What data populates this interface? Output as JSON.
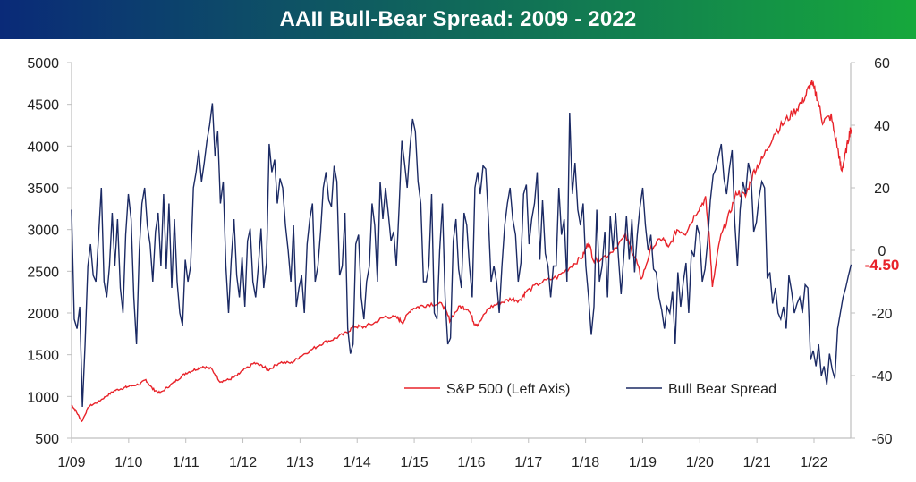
{
  "header": {
    "title": "AAII Bull-Bear Spread: 2009 - 2022",
    "gradient_left": "#0a2a78",
    "gradient_right": "#16a83c"
  },
  "chart_data": {
    "type": "line",
    "title": "AAII Bull-Bear Spread: 2009 - 2022",
    "xlabel": "",
    "ylabel": "",
    "x_ticks": [
      "1/09",
      "1/10",
      "1/11",
      "1/12",
      "1/13",
      "1/14",
      "1/15",
      "1/16",
      "1/17",
      "1/18",
      "1/19",
      "1/20",
      "1/21",
      "1/22"
    ],
    "x_range": [
      2009.0,
      2022.65
    ],
    "left_axis": {
      "ticks": [
        "5000",
        "4500",
        "4000",
        "3500",
        "3000",
        "2500",
        "2000",
        "1500",
        "1000",
        "500"
      ],
      "ylim": [
        500,
        5000
      ]
    },
    "right_axis": {
      "ticks": [
        "60",
        "40",
        "20",
        "0",
        "-20",
        "-40",
        "-60"
      ],
      "ylim": [
        -60,
        60
      ]
    },
    "grid": false,
    "legend_position": "bottom-right",
    "series": [
      {
        "name": "S&P 500 (Left Axis)",
        "axis": "left",
        "color": "#e8232a",
        "points": [
          [
            2009.0,
            900
          ],
          [
            2009.08,
            820
          ],
          [
            2009.18,
            700
          ],
          [
            2009.3,
            880
          ],
          [
            2009.45,
            930
          ],
          [
            2009.6,
            1000
          ],
          [
            2009.75,
            1070
          ],
          [
            2009.9,
            1100
          ],
          [
            2010.0,
            1120
          ],
          [
            2010.2,
            1150
          ],
          [
            2010.3,
            1200
          ],
          [
            2010.42,
            1090
          ],
          [
            2010.55,
            1040
          ],
          [
            2010.7,
            1120
          ],
          [
            2010.85,
            1200
          ],
          [
            2011.0,
            1280
          ],
          [
            2011.15,
            1320
          ],
          [
            2011.3,
            1360
          ],
          [
            2011.45,
            1330
          ],
          [
            2011.6,
            1180
          ],
          [
            2011.75,
            1200
          ],
          [
            2011.9,
            1250
          ],
          [
            2012.0,
            1310
          ],
          [
            2012.2,
            1400
          ],
          [
            2012.35,
            1360
          ],
          [
            2012.45,
            1320
          ],
          [
            2012.65,
            1410
          ],
          [
            2012.85,
            1400
          ],
          [
            2013.0,
            1480
          ],
          [
            2013.2,
            1560
          ],
          [
            2013.4,
            1640
          ],
          [
            2013.6,
            1690
          ],
          [
            2013.8,
            1760
          ],
          [
            2013.95,
            1840
          ],
          [
            2014.1,
            1830
          ],
          [
            2014.3,
            1880
          ],
          [
            2014.5,
            1960
          ],
          [
            2014.7,
            1940
          ],
          [
            2014.8,
            1890
          ],
          [
            2014.95,
            2050
          ],
          [
            2015.1,
            2080
          ],
          [
            2015.3,
            2110
          ],
          [
            2015.5,
            2100
          ],
          [
            2015.62,
            1920
          ],
          [
            2015.8,
            2080
          ],
          [
            2015.95,
            2050
          ],
          [
            2016.05,
            1880
          ],
          [
            2016.12,
            1860
          ],
          [
            2016.3,
            2060
          ],
          [
            2016.5,
            2120
          ],
          [
            2016.7,
            2170
          ],
          [
            2016.85,
            2150
          ],
          [
            2016.95,
            2250
          ],
          [
            2017.2,
            2360
          ],
          [
            2017.5,
            2430
          ],
          [
            2017.75,
            2560
          ],
          [
            2017.95,
            2680
          ],
          [
            2018.05,
            2850
          ],
          [
            2018.15,
            2620
          ],
          [
            2018.4,
            2700
          ],
          [
            2018.7,
            2920
          ],
          [
            2018.88,
            2650
          ],
          [
            2018.98,
            2400
          ],
          [
            2019.15,
            2780
          ],
          [
            2019.35,
            2900
          ],
          [
            2019.45,
            2770
          ],
          [
            2019.6,
            3000
          ],
          [
            2019.75,
            2960
          ],
          [
            2019.95,
            3220
          ],
          [
            2020.1,
            3370
          ],
          [
            2020.18,
            2800
          ],
          [
            2020.22,
            2300
          ],
          [
            2020.35,
            2880
          ],
          [
            2020.5,
            3150
          ],
          [
            2020.65,
            3450
          ],
          [
            2020.8,
            3400
          ],
          [
            2020.95,
            3700
          ],
          [
            2021.1,
            3850
          ],
          [
            2021.3,
            4150
          ],
          [
            2021.5,
            4300
          ],
          [
            2021.7,
            4450
          ],
          [
            2021.85,
            4600
          ],
          [
            2021.95,
            4760
          ],
          [
            2022.05,
            4600
          ],
          [
            2022.15,
            4300
          ],
          [
            2022.3,
            4350
          ],
          [
            2022.42,
            3950
          ],
          [
            2022.48,
            3700
          ],
          [
            2022.55,
            3900
          ],
          [
            2022.62,
            4150
          ],
          [
            2022.65,
            4200
          ]
        ]
      },
      {
        "name": "Bull Bear Spread",
        "axis": "right",
        "color": "#1b2a64",
        "start": 2009.0,
        "end": 2022.65,
        "values": [
          13,
          -22,
          -25,
          -18,
          -50,
          -30,
          -5,
          2,
          -8,
          -10,
          5,
          20,
          -10,
          -15,
          -5,
          12,
          -5,
          10,
          -12,
          -20,
          5,
          18,
          10,
          -15,
          -30,
          0,
          15,
          20,
          8,
          2,
          -10,
          6,
          12,
          -5,
          18,
          -6,
          15,
          -12,
          10,
          -10,
          -20,
          -24,
          -3,
          -10,
          -5,
          20,
          25,
          32,
          22,
          28,
          35,
          40,
          47,
          30,
          38,
          15,
          22,
          -5,
          -20,
          -3,
          10,
          -8,
          -15,
          -2,
          -18,
          3,
          7,
          -10,
          -15,
          -5,
          7,
          -12,
          -4,
          34,
          25,
          29,
          15,
          23,
          20,
          8,
          0,
          -10,
          8,
          -18,
          -12,
          -8,
          -20,
          2,
          10,
          15,
          -10,
          -5,
          6,
          20,
          25,
          16,
          14,
          27,
          22,
          -8,
          -5,
          12,
          -25,
          -33,
          -30,
          2,
          5,
          -15,
          -22,
          -10,
          -5,
          15,
          8,
          -10,
          22,
          10,
          20,
          12,
          3,
          6,
          -5,
          14,
          35,
          28,
          20,
          33,
          42,
          38,
          22,
          15,
          -10,
          -10,
          -5,
          18,
          -20,
          -22,
          0,
          15,
          -15,
          -30,
          -28,
          3,
          10,
          -6,
          -12,
          12,
          8,
          -5,
          -15,
          20,
          25,
          18,
          27,
          26,
          10,
          -10,
          -5,
          -10,
          -20,
          -5,
          8,
          15,
          20,
          10,
          5,
          -10,
          -4,
          18,
          21,
          2,
          10,
          15,
          25,
          -3,
          16,
          -1,
          -5,
          -15,
          -5,
          -5,
          20,
          5,
          10,
          -10,
          44,
          18,
          28,
          13,
          8,
          15,
          -5,
          -15,
          -27,
          -18,
          13,
          -10,
          -5,
          6,
          -15,
          11,
          0,
          12,
          -2,
          -14,
          -2,
          11,
          -3,
          10,
          -7,
          5,
          14,
          20,
          8,
          0,
          5,
          -6,
          -7,
          -15,
          -19,
          -25,
          -18,
          -20,
          -13,
          -30,
          -7,
          -18,
          -10,
          -4,
          -20,
          0,
          -2,
          8,
          5,
          -10,
          -6,
          3,
          16,
          24,
          26,
          30,
          34,
          23,
          18,
          26,
          32,
          9,
          -5,
          13,
          22,
          18,
          28,
          24,
          6,
          9,
          17,
          22,
          20,
          -9,
          -7,
          -17,
          -12,
          -20,
          -22,
          -18,
          -25,
          -8,
          -13,
          -20,
          -17,
          -15,
          -20,
          -11,
          -12,
          -35,
          -32,
          -37,
          -30,
          -40,
          -37,
          -43,
          -33,
          -38,
          -41,
          -25,
          -20,
          -15,
          -12,
          -8,
          -4.5
        ]
      }
    ],
    "annotations": [
      {
        "text": "-4.50",
        "axis": "right",
        "y": -4.5,
        "color": "#e8232a"
      }
    ]
  }
}
